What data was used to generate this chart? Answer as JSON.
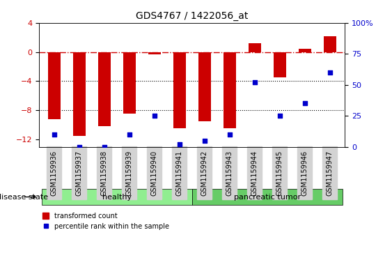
{
  "title": "GDS4767 / 1422056_at",
  "samples": [
    "GSM1159936",
    "GSM1159937",
    "GSM1159938",
    "GSM1159939",
    "GSM1159940",
    "GSM1159941",
    "GSM1159942",
    "GSM1159943",
    "GSM1159944",
    "GSM1159945",
    "GSM1159946",
    "GSM1159947"
  ],
  "transformed_count": [
    -9.2,
    -11.5,
    -10.2,
    -8.5,
    -0.3,
    -10.5,
    -9.5,
    -10.5,
    1.2,
    -3.5,
    0.4,
    2.2
  ],
  "percentile_rank": [
    10,
    0,
    0,
    10,
    25,
    2,
    5,
    10,
    52,
    25,
    35,
    60
  ],
  "healthy_count": 6,
  "pancreatic_count": 6,
  "ylim_left": [
    -13,
    4
  ],
  "ylim_right": [
    0,
    100
  ],
  "yticks_left": [
    -12,
    -8,
    -4,
    0,
    4
  ],
  "yticks_right": [
    0,
    25,
    50,
    75,
    100
  ],
  "bar_color": "#cc0000",
  "dot_color": "#0000cc",
  "hline_color": "#cc0000",
  "grid_color": "#000000",
  "healthy_color": "#90ee90",
  "tumor_color": "#66cc66",
  "bg_color": "#ffffff",
  "bar_width": 0.5,
  "legend_labels": [
    "transformed count",
    "percentile rank within the sample"
  ]
}
